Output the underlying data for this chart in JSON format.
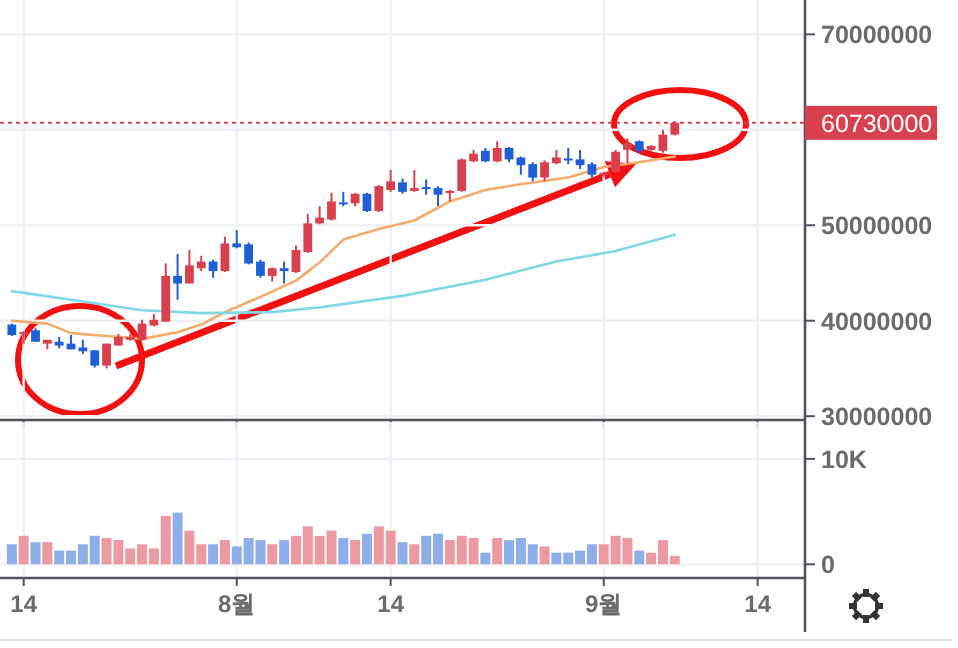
{
  "chart_data": [
    {
      "type": "candlestick",
      "xlim": [
        "--07-12",
        "--09-18"
      ],
      "x": [
        "--07-13",
        "--07-14",
        "--07-15",
        "--07-16",
        "--07-17",
        "--07-18",
        "--07-19",
        "--07-20",
        "--07-21",
        "--07-22",
        "--07-23",
        "--07-24",
        "--07-25",
        "--07-26",
        "--07-27",
        "--07-28",
        "--07-29",
        "--07-30",
        "--07-31",
        "--08-01",
        "--08-02",
        "--08-03",
        "--08-04",
        "--08-05",
        "--08-06",
        "--08-07",
        "--08-08",
        "--08-09",
        "--08-10",
        "--08-11",
        "--08-12",
        "--08-13",
        "--08-14",
        "--08-15",
        "--08-16",
        "--08-17",
        "--08-18",
        "--08-19",
        "--08-20",
        "--08-21",
        "--08-22",
        "--08-23",
        "--08-24",
        "--08-25",
        "--08-26",
        "--08-27",
        "--08-28",
        "--08-29",
        "--08-30",
        "--08-31",
        "--09-01",
        "--09-02",
        "--09-03",
        "--09-04",
        "--09-05",
        "--09-06",
        "--09-07"
      ],
      "ohlc": [
        [
          39600000,
          39700000,
          38400000,
          38500000
        ],
        [
          38600000,
          38900000,
          37600000,
          38800000
        ],
        [
          39000000,
          39200000,
          37800000,
          37800000
        ],
        [
          37600000,
          38000000,
          37000000,
          38000000
        ],
        [
          37800000,
          38300000,
          37100000,
          37400000
        ],
        [
          37600000,
          38500000,
          37000000,
          37000000
        ],
        [
          37200000,
          38000000,
          36500000,
          36800000
        ],
        [
          36900000,
          36900000,
          35100000,
          35300000
        ],
        [
          35300000,
          37600000,
          35000000,
          37600000
        ],
        [
          37400000,
          38600000,
          37400000,
          38300000
        ],
        [
          38000000,
          38600000,
          37900000,
          38300000
        ],
        [
          38000000,
          40100000,
          37900000,
          39700000
        ],
        [
          39500000,
          40700000,
          39400000,
          40100000
        ],
        [
          39900000,
          46000000,
          39900000,
          44700000
        ],
        [
          44700000,
          47000000,
          42200000,
          43900000
        ],
        [
          43900000,
          47400000,
          43900000,
          45800000
        ],
        [
          45500000,
          46800000,
          45200000,
          46200000
        ],
        [
          46200000,
          46400000,
          44500000,
          45200000
        ],
        [
          45200000,
          48800000,
          45100000,
          48100000
        ],
        [
          48100000,
          49500000,
          47600000,
          47700000
        ],
        [
          48000000,
          48200000,
          45900000,
          46000000
        ],
        [
          46200000,
          46400000,
          44500000,
          44700000
        ],
        [
          44700000,
          45600000,
          44100000,
          45500000
        ],
        [
          45500000,
          46200000,
          43900000,
          45200000
        ],
        [
          45100000,
          47900000,
          45000000,
          47400000
        ],
        [
          47200000,
          51200000,
          47100000,
          50200000
        ],
        [
          50200000,
          52000000,
          50100000,
          50800000
        ],
        [
          50600000,
          53400000,
          50500000,
          52500000
        ],
        [
          52400000,
          53500000,
          52000000,
          52200000
        ],
        [
          52300000,
          53400000,
          52000000,
          53300000
        ],
        [
          53300000,
          53400000,
          51400000,
          51500000
        ],
        [
          51500000,
          54200000,
          51400000,
          54100000
        ],
        [
          53700000,
          55800000,
          53500000,
          54600000
        ],
        [
          54500000,
          54900000,
          53300000,
          53500000
        ],
        [
          53600000,
          55800000,
          53500000,
          53900000
        ],
        [
          54000000,
          54800000,
          53200000,
          53800000
        ],
        [
          53900000,
          54100000,
          52000000,
          53200000
        ],
        [
          53400000,
          53700000,
          52500000,
          53600000
        ],
        [
          53600000,
          57000000,
          53500000,
          56900000
        ],
        [
          56700000,
          57900000,
          56600000,
          57500000
        ],
        [
          57800000,
          58100000,
          56600000,
          56700000
        ],
        [
          56700000,
          58800000,
          56600000,
          58100000
        ],
        [
          58100000,
          58200000,
          56600000,
          56900000
        ],
        [
          57100000,
          57200000,
          55300000,
          56300000
        ],
        [
          56400000,
          56600000,
          54600000,
          55000000
        ],
        [
          55000000,
          56800000,
          54600000,
          56600000
        ],
        [
          56500000,
          57900000,
          56400000,
          57100000
        ],
        [
          57000000,
          58100000,
          56400000,
          56800000
        ],
        [
          56900000,
          57900000,
          55900000,
          56300000
        ],
        [
          56400000,
          56600000,
          55000000,
          55300000
        ],
        [
          55300000,
          55600000,
          55100000,
          55500000
        ],
        [
          55600000,
          57900000,
          55500000,
          57700000
        ],
        [
          57900000,
          59100000,
          56500000,
          58600000
        ],
        [
          58800000,
          58900000,
          57600000,
          57800000
        ],
        [
          57900000,
          58400000,
          57800000,
          58300000
        ],
        [
          57800000,
          60000000,
          57600000,
          59500000
        ],
        [
          59500000,
          60900000,
          59400000,
          60730000
        ]
      ],
      "colors": [
        "#1f5fd6",
        "#d9404e",
        "#1f5fd6",
        "#d9404e",
        "#1f5fd6",
        "#1f5fd6",
        "#1f5fd6",
        "#1f5fd6",
        "#d9404e",
        "#d9404e",
        "#d9404e",
        "#d9404e",
        "#d9404e",
        "#d9404e",
        "#1f5fd6",
        "#d9404e",
        "#d9404e",
        "#1f5fd6",
        "#d9404e",
        "#1f5fd6",
        "#1f5fd6",
        "#1f5fd6",
        "#d9404e",
        "#1f5fd6",
        "#d9404e",
        "#d9404e",
        "#d9404e",
        "#d9404e",
        "#1f5fd6",
        "#d9404e",
        "#1f5fd6",
        "#d9404e",
        "#d9404e",
        "#1f5fd6",
        "#d9404e",
        "#1f5fd6",
        "#1f5fd6",
        "#d9404e",
        "#d9404e",
        "#d9404e",
        "#1f5fd6",
        "#d9404e",
        "#1f5fd6",
        "#1f5fd6",
        "#1f5fd6",
        "#d9404e",
        "#d9404e",
        "#1f5fd6",
        "#1f5fd6",
        "#1f5fd6",
        "#d9404e",
        "#d9404e",
        "#d9404e",
        "#1f5fd6",
        "#d9404e",
        "#d9404e",
        "#d9404e"
      ],
      "series": [
        {
          "type": "line",
          "color": "#f7ab6a",
          "x": [
            "--07-13",
            "--07-16",
            "--07-18",
            "--07-21",
            "--07-24",
            "--07-27",
            "--07-29",
            "--07-31",
            "--08-03",
            "--08-06",
            "--08-08",
            "--08-10",
            "--08-13",
            "--08-16",
            "--08-19",
            "--08-22",
            "--08-25",
            "--08-29",
            "--09-01",
            "--09-04",
            "--09-07"
          ],
          "values": [
            40000000,
            39700000,
            38700000,
            38400000,
            38100000,
            38800000,
            39600000,
            40900000,
            42500000,
            44200000,
            46100000,
            48500000,
            49600000,
            50500000,
            52500000,
            53700000,
            54300000,
            55000000,
            56100000,
            56600000,
            57200000
          ]
        },
        {
          "type": "line",
          "color": "#7fd8e3",
          "x": [
            "--07-13",
            "--07-18",
            "--07-24",
            "--07-29",
            "--08-04",
            "--08-08",
            "--08-15",
            "--08-22",
            "--08-28",
            "--09-02",
            "--09-07"
          ],
          "values": [
            43100000,
            42200000,
            41100000,
            40800000,
            40900000,
            41400000,
            42600000,
            44300000,
            46200000,
            47300000,
            49000000
          ]
        }
      ],
      "ylim": [
        29600000,
        73600000
      ],
      "yticks": [
        30000000,
        40000000,
        50000000,
        60000000,
        70000000
      ],
      "ref_lines": [
        {
          "axis": "y",
          "value": 60730000,
          "label": "60730000",
          "color": "#d9404e",
          "line_style": "dotted"
        }
      ],
      "grid": true,
      "tick_labels": "y",
      "xticks": [
        {
          "value": "--07-14",
          "label": null
        },
        {
          "value": "--08-01",
          "label": null
        },
        {
          "value": "--08-14",
          "label": null
        },
        {
          "value": "--09-01",
          "label": null
        },
        {
          "value": "--09-14",
          "label": null
        }
      ]
    },
    {
      "type": "bar",
      "xlim": [
        "--07-12",
        "--09-18"
      ],
      "x": [
        "--07-13",
        "--07-14",
        "--07-15",
        "--07-16",
        "--07-17",
        "--07-18",
        "--07-19",
        "--07-20",
        "--07-21",
        "--07-22",
        "--07-23",
        "--07-24",
        "--07-25",
        "--07-26",
        "--07-27",
        "--07-28",
        "--07-29",
        "--07-30",
        "--07-31",
        "--08-01",
        "--08-02",
        "--08-03",
        "--08-04",
        "--08-05",
        "--08-06",
        "--08-07",
        "--08-08",
        "--08-09",
        "--08-10",
        "--08-11",
        "--08-12",
        "--08-13",
        "--08-14",
        "--08-15",
        "--08-16",
        "--08-17",
        "--08-18",
        "--08-19",
        "--08-20",
        "--08-21",
        "--08-22",
        "--08-23",
        "--08-24",
        "--08-25",
        "--08-26",
        "--08-27",
        "--08-28",
        "--08-29",
        "--08-30",
        "--08-31",
        "--09-01",
        "--09-02",
        "--09-03",
        "--09-04",
        "--09-05",
        "--09-06",
        "--09-07"
      ],
      "values": [
        1900,
        2700,
        2100,
        2100,
        1300,
        1300,
        1900,
        2700,
        2500,
        2300,
        1500,
        1900,
        1500,
        4600,
        4900,
        3200,
        1900,
        1900,
        2300,
        1700,
        2500,
        2300,
        1900,
        2300,
        2700,
        3600,
        2700,
        3200,
        2500,
        2300,
        2900,
        3600,
        3200,
        2100,
        1900,
        2700,
        2900,
        2300,
        2700,
        2500,
        1100,
        2500,
        2300,
        2500,
        1900,
        1700,
        1100,
        1100,
        1300,
        1900,
        1900,
        2700,
        2500,
        1300,
        1100,
        2300,
        800
      ],
      "colors": [
        "#8eaee9",
        "#eb9aa2",
        "#8eaee9",
        "#eb9aa2",
        "#8eaee9",
        "#8eaee9",
        "#8eaee9",
        "#8eaee9",
        "#eb9aa2",
        "#eb9aa2",
        "#eb9aa2",
        "#eb9aa2",
        "#eb9aa2",
        "#eb9aa2",
        "#8eaee9",
        "#eb9aa2",
        "#eb9aa2",
        "#8eaee9",
        "#eb9aa2",
        "#8eaee9",
        "#8eaee9",
        "#8eaee9",
        "#eb9aa2",
        "#8eaee9",
        "#eb9aa2",
        "#eb9aa2",
        "#eb9aa2",
        "#eb9aa2",
        "#8eaee9",
        "#eb9aa2",
        "#8eaee9",
        "#eb9aa2",
        "#eb9aa2",
        "#8eaee9",
        "#eb9aa2",
        "#8eaee9",
        "#8eaee9",
        "#eb9aa2",
        "#eb9aa2",
        "#eb9aa2",
        "#8eaee9",
        "#eb9aa2",
        "#8eaee9",
        "#8eaee9",
        "#8eaee9",
        "#eb9aa2",
        "#8eaee9",
        "#8eaee9",
        "#8eaee9",
        "#8eaee9",
        "#eb9aa2",
        "#eb9aa2",
        "#eb9aa2",
        "#8eaee9",
        "#eb9aa2",
        "#eb9aa2",
        "#eb9aa2"
      ],
      "ylim": [
        -1300,
        13500
      ],
      "yticks": [
        0,
        {
          "value": 10000,
          "label": "10K"
        }
      ],
      "xticks": [
        {
          "value": "--07-14",
          "label": "14"
        },
        {
          "value": "--08-01",
          "label": "8월"
        },
        {
          "value": "--08-14",
          "label": "14"
        },
        {
          "value": "--09-01",
          "label": "9월"
        },
        {
          "value": "--09-14",
          "label": "14"
        }
      ],
      "grid": true
    }
  ]
}
